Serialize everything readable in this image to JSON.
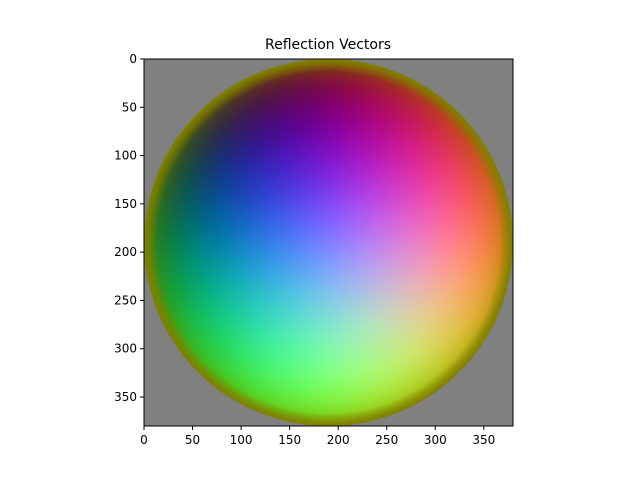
{
  "chart_data": {
    "type": "heatmap",
    "title": "Reflection Vectors",
    "xlabel": "",
    "ylabel": "",
    "xlim": [
      0,
      380
    ],
    "ylim": [
      380,
      0
    ],
    "x_ticks": [
      0,
      50,
      100,
      150,
      200,
      250,
      300,
      350
    ],
    "y_ticks": [
      0,
      50,
      100,
      150,
      200,
      250,
      300,
      350
    ],
    "grid": false,
    "legend": "none",
    "image": {
      "description_type": "rgb-normal-sphere",
      "width": 380,
      "height": 380,
      "sphere_center": [
        190,
        190
      ],
      "sphere_radius": 190,
      "background_color": "#808080",
      "rim_color": "#808000"
    }
  }
}
